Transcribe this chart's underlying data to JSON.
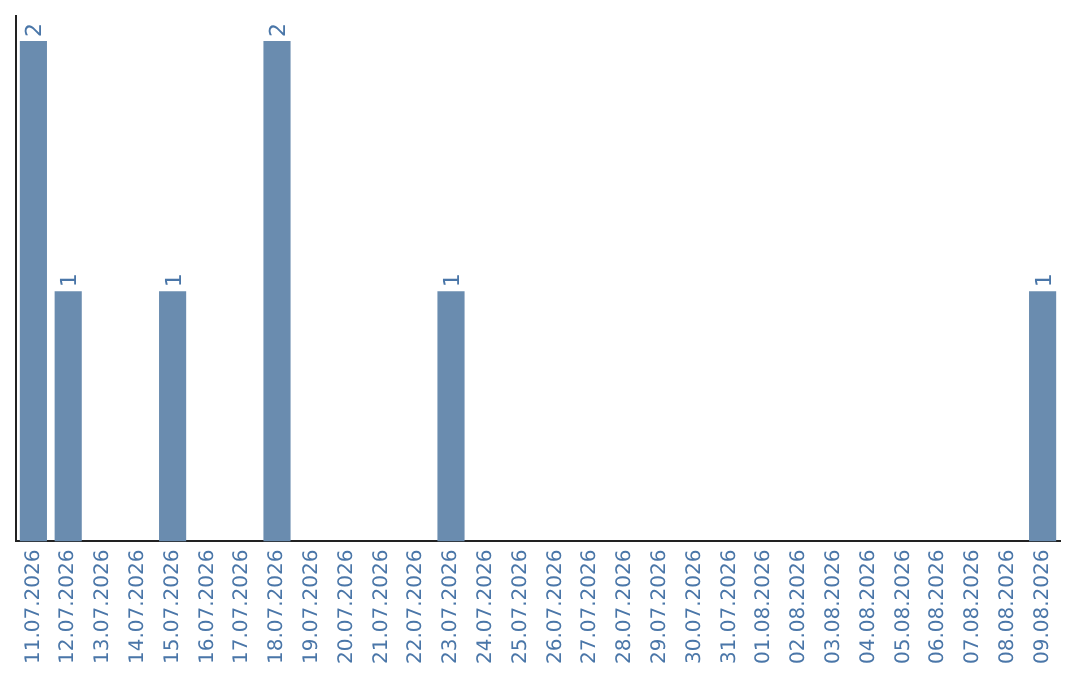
{
  "chart_data": {
    "type": "bar",
    "categories": [
      "11.07.2026",
      "12.07.2026",
      "13.07.2026",
      "14.07.2026",
      "15.07.2026",
      "16.07.2026",
      "17.07.2026",
      "18.07.2026",
      "19.07.2026",
      "20.07.2026",
      "21.07.2026",
      "22.07.2026",
      "23.07.2026",
      "24.07.2026",
      "25.07.2026",
      "26.07.2026",
      "27.07.2026",
      "28.07.2026",
      "29.07.2026",
      "30.07.2026",
      "31.07.2026",
      "01.08.2026",
      "02.08.2026",
      "03.08.2026",
      "04.08.2026",
      "05.08.2026",
      "06.08.2026",
      "07.08.2026",
      "08.08.2026",
      "09.08.2026"
    ],
    "values": [
      2,
      1,
      0,
      0,
      1,
      0,
      0,
      2,
      0,
      0,
      0,
      0,
      1,
      0,
      0,
      0,
      0,
      0,
      0,
      0,
      0,
      0,
      0,
      0,
      0,
      0,
      0,
      0,
      0,
      1
    ],
    "value_labels": [
      "2",
      "1",
      null,
      null,
      "1",
      null,
      null,
      "2",
      null,
      null,
      null,
      null,
      "1",
      null,
      null,
      null,
      null,
      null,
      null,
      null,
      null,
      null,
      null,
      null,
      null,
      null,
      null,
      null,
      null,
      "1"
    ],
    "color": "#6a8caf",
    "ylim": [
      0,
      2
    ],
    "tick_labels": "x",
    "grid": false,
    "legend": false
  }
}
